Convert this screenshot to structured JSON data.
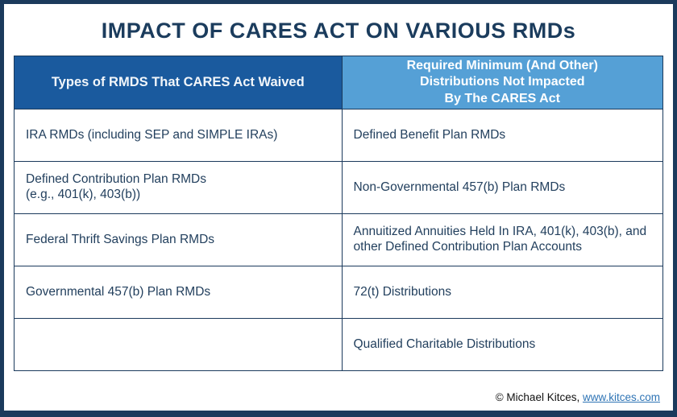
{
  "title": "IMPACT OF CARES ACT ON VARIOUS RMDs",
  "colors": {
    "border_navy": "#1b3a5c",
    "title_navy": "#1b3c5d",
    "header_left_bg": "#1a5a9e",
    "header_right_bg": "#55a0d6",
    "cell_text": "#23405e",
    "link_blue": "#2e74b5"
  },
  "table": {
    "headers": [
      "Types of RMDS That CARES Act Waived",
      "Required Minimum (And Other)\nDistributions  Not Impacted\nBy The CARES Act"
    ],
    "rows": [
      {
        "waived": "IRA RMDs (including SEP and SIMPLE IRAs)",
        "not_impacted": "Defined Benefit Plan RMDs"
      },
      {
        "waived": "Defined Contribution Plan RMDs\n(e.g., 401(k), 403(b))",
        "not_impacted": "Non-Governmental 457(b) Plan RMDs"
      },
      {
        "waived": "Federal Thrift Savings Plan RMDs",
        "not_impacted": "Annuitized Annuities Held In IRA, 401(k), 403(b), and other Defined Contribution Plan Accounts"
      },
      {
        "waived": "Governmental 457(b) Plan RMDs",
        "not_impacted": "72(t) Distributions"
      },
      {
        "waived": "",
        "not_impacted": "Qualified Charitable Distributions"
      }
    ]
  },
  "footer": {
    "copyright": "© Michael Kitces, ",
    "link_text": "www.kitces.com"
  },
  "chart_data": {
    "type": "table",
    "title": "IMPACT OF CARES ACT ON VARIOUS RMDs",
    "columns": [
      "Types of RMDS That CARES Act Waived",
      "Required Minimum (And Other) Distributions Not Impacted By The CARES Act"
    ],
    "rows": [
      [
        "IRA RMDs (including SEP and SIMPLE IRAs)",
        "Defined Benefit Plan RMDs"
      ],
      [
        "Defined Contribution Plan RMDs (e.g., 401(k), 403(b))",
        "Non-Governmental 457(b) Plan RMDs"
      ],
      [
        "Federal Thrift Savings Plan RMDs",
        "Annuitized Annuities Held In IRA, 401(k), 403(b), and other Defined Contribution Plan Accounts"
      ],
      [
        "Governmental 457(b) Plan RMDs",
        "72(t) Distributions"
      ],
      [
        "",
        "Qualified Charitable Distributions"
      ]
    ],
    "legend_position": "none",
    "grid": true
  }
}
